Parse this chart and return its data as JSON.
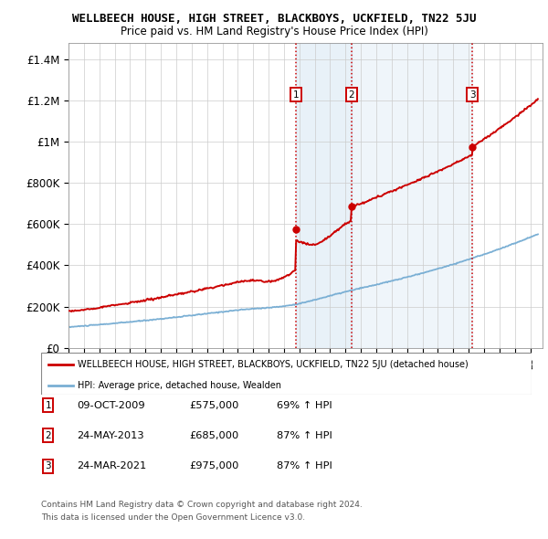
{
  "title": "WELLBEECH HOUSE, HIGH STREET, BLACKBOYS, UCKFIELD, TN22 5JU",
  "subtitle": "Price paid vs. HM Land Registry's House Price Index (HPI)",
  "ylabel_ticks": [
    "£0",
    "£200K",
    "£400K",
    "£600K",
    "£800K",
    "£1M",
    "£1.2M",
    "£1.4M"
  ],
  "ytick_values": [
    0,
    200000,
    400000,
    600000,
    800000,
    1000000,
    1200000,
    1400000
  ],
  "ylim": [
    0,
    1480000
  ],
  "xlim_start": 1995.0,
  "xlim_end": 2025.8,
  "sale_dates": [
    2009.77,
    2013.39,
    2021.23
  ],
  "sale_prices": [
    575000,
    685000,
    975000
  ],
  "sale_labels": [
    "1",
    "2",
    "3"
  ],
  "legend_line1": "WELLBEECH HOUSE, HIGH STREET, BLACKBOYS, UCKFIELD, TN22 5JU (detached house)",
  "legend_line2": "HPI: Average price, detached house, Wealden",
  "table_rows": [
    [
      "1",
      "09-OCT-2009",
      "£575,000",
      "69% ↑ HPI"
    ],
    [
      "2",
      "24-MAY-2013",
      "£685,000",
      "87% ↑ HPI"
    ],
    [
      "3",
      "24-MAR-2021",
      "£975,000",
      "87% ↑ HPI"
    ]
  ],
  "footnote1": "Contains HM Land Registry data © Crown copyright and database right 2024.",
  "footnote2": "This data is licensed under the Open Government Licence v3.0.",
  "red_color": "#cc0000",
  "blue_color": "#7aafd4",
  "shade_color": "#ddeeff"
}
